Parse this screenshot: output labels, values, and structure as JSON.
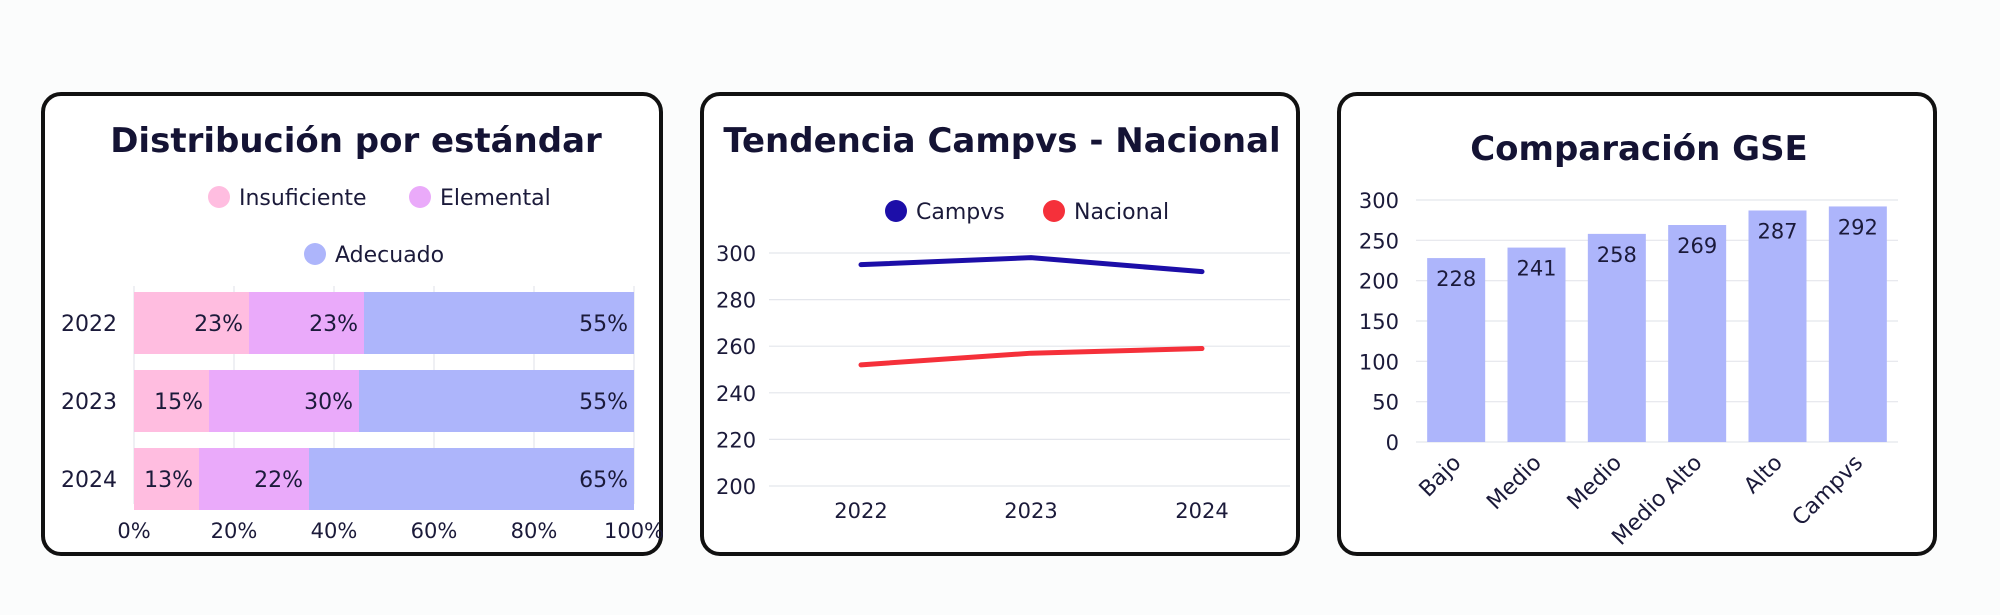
{
  "colors": {
    "insuficiente": "#ffbde0",
    "elemental": "#eaaafa",
    "adecuado": "#adb5fb",
    "campvs": "#1c0ea8",
    "nacional": "#f5303a",
    "gse_bar": "#adb5fb"
  },
  "chart_data": [
    {
      "type": "bar",
      "orientation": "horizontal",
      "stacked": true,
      "title": "Distribución por estándar",
      "categories": [
        "2022",
        "2023",
        "2024"
      ],
      "series": [
        {
          "name": "Insuficiente",
          "values": [
            23,
            15,
            13
          ],
          "labels": [
            "23%",
            "15%",
            "13%"
          ]
        },
        {
          "name": "Elemental",
          "values": [
            23,
            30,
            22
          ],
          "labels": [
            "23%",
            "30%",
            "22%"
          ]
        },
        {
          "name": "Adecuado",
          "values": [
            55,
            55,
            65
          ],
          "labels": [
            "55%",
            "55%",
            "65%"
          ]
        }
      ],
      "xlim": [
        0,
        100
      ],
      "x_ticks": [
        "0%",
        "20%",
        "40%",
        "60%",
        "80%",
        "100%"
      ],
      "grid": true,
      "legend_position": "top"
    },
    {
      "type": "line",
      "title": "Tendencia Campvs - Nacional",
      "x": [
        "2022",
        "2023",
        "2024"
      ],
      "series": [
        {
          "name": "Campvs",
          "values": [
            295,
            298,
            292
          ]
        },
        {
          "name": "Nacional",
          "values": [
            252,
            257,
            259
          ]
        }
      ],
      "ylim": [
        200,
        300
      ],
      "y_ticks": [
        "200",
        "220",
        "240",
        "260",
        "280",
        "300"
      ],
      "grid": true,
      "legend_position": "top"
    },
    {
      "type": "bar",
      "title": "Comparación GSE",
      "categories": [
        "Bajo",
        "Medio",
        "Medio",
        "Medio Alto",
        "Alto",
        "Campvs"
      ],
      "values": [
        228,
        241,
        258,
        269,
        287,
        292
      ],
      "ylim": [
        0,
        300
      ],
      "y_ticks": [
        "0",
        "50",
        "100",
        "150",
        "200",
        "250",
        "300"
      ],
      "grid": true
    }
  ]
}
